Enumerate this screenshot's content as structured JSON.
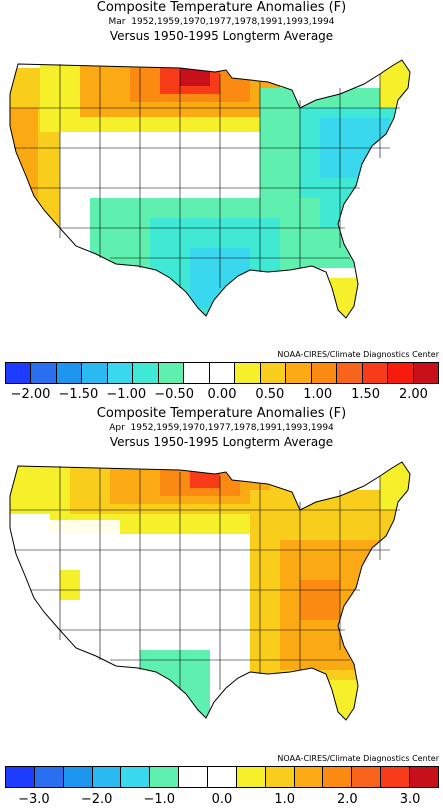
{
  "panels": [
    {
      "title": "Composite Temperature Anomalies (F)",
      "month": "Mar",
      "years": "1952,1959,1970,1977,1978,1991,1993,1994",
      "baseline": "Versus 1950-1995 Longterm Average",
      "credit": "NOAA-CIRES/Climate Diagnostics Center",
      "colorbar": {
        "colors": [
          "#1e3cff",
          "#2a6ff0",
          "#1e96f0",
          "#2bb9f2",
          "#3ad8ee",
          "#3fe9d4",
          "#5ff0b0",
          "#ffffff",
          "#ffffff",
          "#f6f02a",
          "#f9cd1c",
          "#fbaa14",
          "#fb8a12",
          "#f9641c",
          "#f83c1a",
          "#f51c0e",
          "#c8101a"
        ],
        "labels": [
          "-2.00",
          "-1.50",
          "-1.00",
          "-0.50",
          "0.00",
          "0.50",
          "1.00",
          "1.50",
          "2.00"
        ]
      }
    },
    {
      "title": "Composite Temperature Anomalies (F)",
      "month": "Apr",
      "years": "1952,1959,1970,1977,1978,1991,1993,1994",
      "baseline": "Versus 1950-1995 Longterm Average",
      "credit": "NOAA-CIRES/Climate Diagnostics Center",
      "colorbar": {
        "colors": [
          "#1e3cff",
          "#2a6ff0",
          "#1e96f0",
          "#2bb9f2",
          "#3ad8ee",
          "#5ff0b0",
          "#ffffff",
          "#ffffff",
          "#f6f02a",
          "#f9cd1c",
          "#fbaa14",
          "#fb8a12",
          "#f9641c",
          "#f83c1a",
          "#c8101a"
        ],
        "labels": [
          "-3.0",
          "-2.0",
          "-1.0",
          "0.0",
          "1.0",
          "2.0",
          "3.0"
        ]
      }
    }
  ]
}
